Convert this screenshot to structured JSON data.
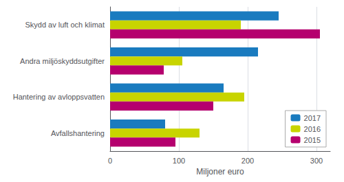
{
  "chart_data": {
    "type": "bar",
    "orientation": "horizontal",
    "categories": [
      "Skydd av luft och klimat",
      "Andra miljöskyddsutgifter",
      "Hantering av avloppsvatten",
      "Avfallshantering"
    ],
    "series": [
      {
        "name": "2017",
        "color": "#1a7bbf",
        "values": [
          245,
          215,
          165,
          80
        ]
      },
      {
        "name": "2016",
        "color": "#c8d400",
        "values": [
          190,
          105,
          195,
          130
        ]
      },
      {
        "name": "2015",
        "color": "#b5006e",
        "values": [
          305,
          78,
          150,
          95
        ]
      }
    ],
    "xlabel": "Miljoner euro",
    "xlim": [
      0,
      320
    ],
    "xticks": [
      0,
      100,
      200,
      300
    ],
    "grid": true,
    "legend": "lower right"
  }
}
